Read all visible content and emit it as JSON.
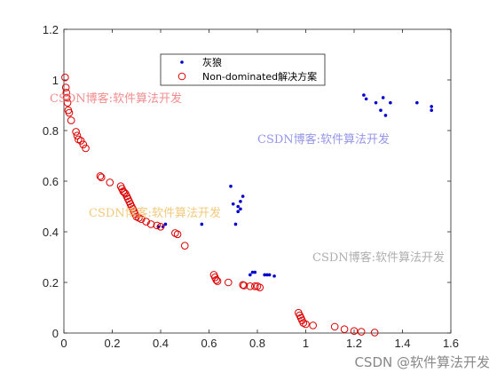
{
  "chart_data": {
    "type": "scatter",
    "title": "",
    "xlabel": "",
    "ylabel": "",
    "xlim": [
      0,
      1.6
    ],
    "ylim": [
      0,
      1.2
    ],
    "xticks": [
      "0",
      "0.2",
      "0.4",
      "0.6",
      "0.8",
      "1",
      "1.2",
      "1.4",
      "1.6"
    ],
    "yticks": [
      "0",
      "0.2",
      "0.4",
      "0.6",
      "0.8",
      "1",
      "1.2"
    ],
    "grid": false,
    "legend_position": "upper-center",
    "series": [
      {
        "name": "灰狼",
        "marker": "dot",
        "color": "#0000cc",
        "points": [
          [
            0.39,
            0.42
          ],
          [
            0.41,
            0.42
          ],
          [
            0.42,
            0.43
          ],
          [
            0.57,
            0.43
          ],
          [
            0.69,
            0.58
          ],
          [
            0.7,
            0.51
          ],
          [
            0.71,
            0.43
          ],
          [
            0.72,
            0.5
          ],
          [
            0.72,
            0.48
          ],
          [
            0.73,
            0.52
          ],
          [
            0.73,
            0.49
          ],
          [
            0.74,
            0.54
          ],
          [
            0.77,
            0.23
          ],
          [
            0.78,
            0.24
          ],
          [
            0.79,
            0.24
          ],
          [
            0.83,
            0.23
          ],
          [
            0.84,
            0.23
          ],
          [
            0.85,
            0.23
          ],
          [
            0.87,
            0.225
          ],
          [
            1.24,
            0.94
          ],
          [
            1.25,
            0.925
          ],
          [
            1.29,
            0.91
          ],
          [
            1.31,
            0.88
          ],
          [
            1.32,
            0.93
          ],
          [
            1.33,
            0.86
          ],
          [
            1.35,
            0.91
          ],
          [
            1.46,
            0.91
          ],
          [
            1.52,
            0.88
          ],
          [
            1.52,
            0.895
          ]
        ]
      },
      {
        "name": "Non-dominated解决方案",
        "marker": "circle",
        "color": "#dd0000",
        "points": [
          [
            0.005,
            1.01
          ],
          [
            0.008,
            0.97
          ],
          [
            0.01,
            0.95
          ],
          [
            0.012,
            0.93
          ],
          [
            0.015,
            0.91
          ],
          [
            0.018,
            0.88
          ],
          [
            0.022,
            0.87
          ],
          [
            0.03,
            0.84
          ],
          [
            0.05,
            0.795
          ],
          [
            0.055,
            0.78
          ],
          [
            0.06,
            0.765
          ],
          [
            0.07,
            0.76
          ],
          [
            0.08,
            0.745
          ],
          [
            0.09,
            0.73
          ],
          [
            0.15,
            0.62
          ],
          [
            0.155,
            0.615
          ],
          [
            0.19,
            0.595
          ],
          [
            0.235,
            0.58
          ],
          [
            0.24,
            0.57
          ],
          [
            0.245,
            0.56
          ],
          [
            0.25,
            0.555
          ],
          [
            0.255,
            0.55
          ],
          [
            0.26,
            0.54
          ],
          [
            0.265,
            0.53
          ],
          [
            0.27,
            0.52
          ],
          [
            0.275,
            0.51
          ],
          [
            0.28,
            0.5
          ],
          [
            0.285,
            0.49
          ],
          [
            0.29,
            0.48
          ],
          [
            0.295,
            0.47
          ],
          [
            0.3,
            0.46
          ],
          [
            0.31,
            0.455
          ],
          [
            0.32,
            0.45
          ],
          [
            0.34,
            0.44
          ],
          [
            0.36,
            0.43
          ],
          [
            0.385,
            0.425
          ],
          [
            0.4,
            0.42
          ],
          [
            0.46,
            0.395
          ],
          [
            0.47,
            0.39
          ],
          [
            0.5,
            0.345
          ],
          [
            0.62,
            0.23
          ],
          [
            0.625,
            0.22
          ],
          [
            0.63,
            0.21
          ],
          [
            0.635,
            0.205
          ],
          [
            0.68,
            0.2
          ],
          [
            0.74,
            0.19
          ],
          [
            0.745,
            0.188
          ],
          [
            0.77,
            0.185
          ],
          [
            0.79,
            0.185
          ],
          [
            0.8,
            0.185
          ],
          [
            0.81,
            0.18
          ],
          [
            0.97,
            0.08
          ],
          [
            0.975,
            0.07
          ],
          [
            0.98,
            0.06
          ],
          [
            0.985,
            0.05
          ],
          [
            0.99,
            0.04
          ],
          [
            1.0,
            0.035
          ],
          [
            1.03,
            0.03
          ],
          [
            1.12,
            0.025
          ],
          [
            1.16,
            0.015
          ],
          [
            1.2,
            0.008
          ],
          [
            1.23,
            0.005
          ],
          [
            1.285,
            0.002
          ]
        ]
      }
    ]
  },
  "watermarks": [
    "CSDN博客:软件算法开发",
    "CSDN博客:软件算法开发",
    "CSDN博客:软件算法开发",
    "CSDN博客:软件算法开发"
  ],
  "footer": {
    "credit": "CSDN @软件算法开发"
  }
}
